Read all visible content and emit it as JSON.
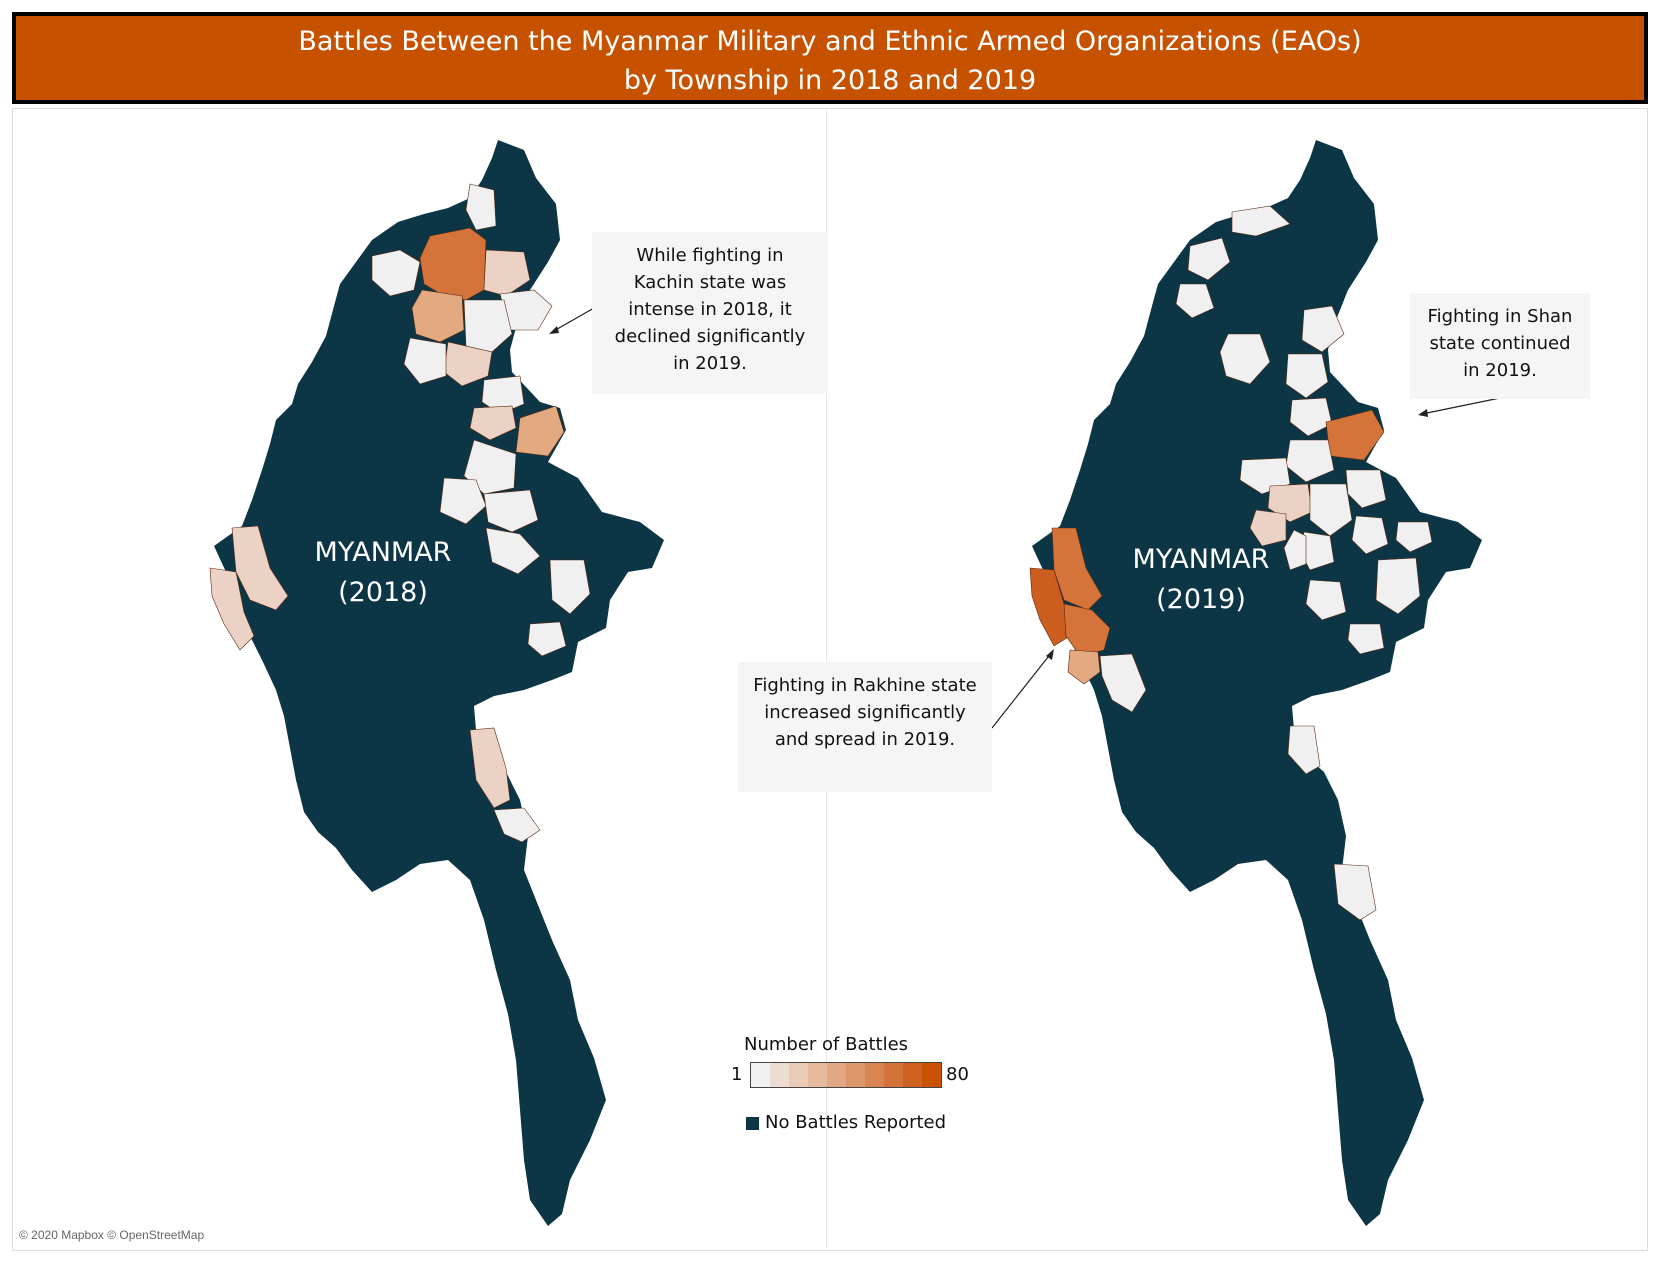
{
  "title": {
    "line1": "Battles Between the Myanmar Military and Ethnic Armed Organizations (EAOs)",
    "line2": "by Township in 2018 and 2019"
  },
  "maps": [
    {
      "country": "MYANMAR",
      "year": "(2018)"
    },
    {
      "country": "MYANMAR",
      "year": "(2019)"
    }
  ],
  "callouts": {
    "kachin": "While fighting in Kachin state was intense in 2018, it declined significantly in 2019.",
    "shan": "Fighting in Shan state continued in 2019.",
    "rakhine": "Fighting in Rakhine state increased significantly and spread in 2019."
  },
  "legend": {
    "title": "Number of Battles",
    "min": "1",
    "max": "80",
    "no_battles": "No Battles Reported",
    "ramp": [
      "#f0f0f0",
      "#ecdcd2",
      "#e9cbb7",
      "#e6ba9d",
      "#e2a883",
      "#de976a",
      "#d98551",
      "#d47339",
      "#cf6221",
      "#c95200"
    ]
  },
  "colors": {
    "title_bg": "#c65200",
    "no_battles": "#0c3546",
    "level_1": "#f0f0f0",
    "level_low": "#ecd2c4",
    "level_mid": "#e3aa82",
    "level_high": "#d4733a",
    "level_max": "#cc5e20"
  },
  "attribution": "© 2020 Mapbox © OpenStreetMap"
}
